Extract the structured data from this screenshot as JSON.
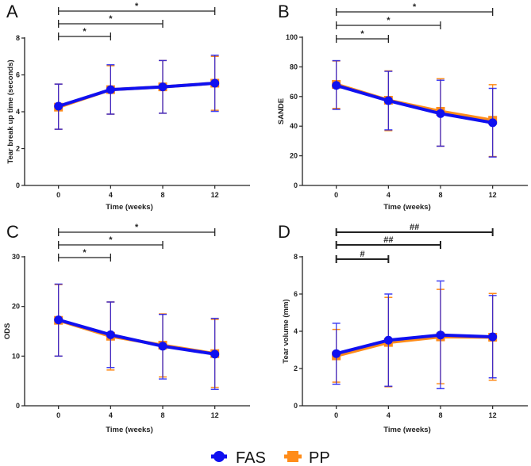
{
  "colors": {
    "FAS": "#1010f0",
    "PP": "#ff8c1a",
    "axis": "#222222"
  },
  "legend": [
    {
      "name": "FAS",
      "label": "FAS",
      "marker": "circle"
    },
    {
      "name": "PP",
      "label": "PP",
      "marker": "square"
    }
  ],
  "chart_data": [
    {
      "panel": "A",
      "type": "line",
      "xlabel": "Time (weeks)",
      "ylabel": "Tear break up time (seconds)",
      "x": [
        0,
        4,
        8,
        12
      ],
      "xticks": [
        "0",
        "4",
        "8",
        "12"
      ],
      "xlim": [
        -2.6,
        14.7
      ],
      "ylim": [
        0,
        8
      ],
      "yticks": [
        "0",
        "2",
        "4",
        "6",
        "8"
      ],
      "series": [
        {
          "name": "PP",
          "values": [
            4.25,
            5.2,
            5.35,
            5.55
          ],
          "err_low": [
            3.05,
            3.87,
            3.92,
            4.08
          ],
          "err_high": [
            5.5,
            6.5,
            6.78,
            7.0
          ]
        },
        {
          "name": "FAS",
          "values": [
            4.3,
            5.2,
            5.35,
            5.55
          ],
          "err_low": [
            3.05,
            3.87,
            3.92,
            4.02
          ],
          "err_high": [
            5.5,
            6.55,
            6.78,
            7.07
          ]
        }
      ],
      "comparisons": [
        {
          "from": 0,
          "to": 12,
          "label": "*"
        },
        {
          "from": 0,
          "to": 8,
          "label": "*"
        },
        {
          "from": 0,
          "to": 4,
          "label": "*"
        }
      ]
    },
    {
      "panel": "B",
      "type": "line",
      "xlabel": "Time (weeks)",
      "ylabel": "SANDE",
      "x": [
        0,
        4,
        8,
        12
      ],
      "xticks": [
        "0",
        "4",
        "8",
        "12"
      ],
      "xlim": [
        -2.6,
        14.7
      ],
      "ylim": [
        0,
        100
      ],
      "yticks": [
        "0",
        "20",
        "40",
        "60",
        "80",
        "100"
      ],
      "series": [
        {
          "name": "PP",
          "values": [
            68.2,
            57.5,
            50,
            44
          ],
          "err_low": [
            52,
            37,
            26.5,
            19.5
          ],
          "err_high": [
            84,
            77.3,
            72,
            68
          ]
        },
        {
          "name": "FAS",
          "values": [
            67.5,
            57.2,
            48.5,
            42.3
          ],
          "err_low": [
            51.3,
            37.5,
            26.5,
            19.2
          ],
          "err_high": [
            84.2,
            77,
            71,
            65.5
          ]
        }
      ],
      "comparisons": [
        {
          "from": 0,
          "to": 12,
          "label": "*"
        },
        {
          "from": 0,
          "to": 8,
          "label": "*"
        },
        {
          "from": 0,
          "to": 4,
          "label": "*"
        }
      ]
    },
    {
      "panel": "C",
      "type": "line",
      "xlabel": "Time (weeks)",
      "ylabel": "ODS",
      "x": [
        0,
        4,
        8,
        12
      ],
      "xticks": [
        "0",
        "4",
        "8",
        "12"
      ],
      "xlim": [
        -2.6,
        14.7
      ],
      "ylim": [
        0,
        30
      ],
      "yticks": [
        "0",
        "10",
        "20",
        "30"
      ],
      "series": [
        {
          "name": "PP",
          "values": [
            17.2,
            14,
            12.2,
            10.5
          ],
          "err_low": [
            10,
            7.2,
            5.8,
            3.7
          ],
          "err_high": [
            24.4,
            20.9,
            18.5,
            17.4
          ]
        },
        {
          "name": "FAS",
          "values": [
            17.3,
            14.3,
            12,
            10.4
          ],
          "err_low": [
            10,
            7.7,
            5.4,
            3.3
          ],
          "err_high": [
            24.5,
            20.9,
            18.4,
            17.6
          ]
        }
      ],
      "comparisons": [
        {
          "from": 0,
          "to": 12,
          "label": "*"
        },
        {
          "from": 0,
          "to": 8,
          "label": "*"
        },
        {
          "from": 0,
          "to": 4,
          "label": "*"
        }
      ]
    },
    {
      "panel": "D",
      "type": "line",
      "xlabel": "Time (weeks)",
      "ylabel": "Tear volume (mm)",
      "x": [
        0,
        4,
        8,
        12
      ],
      "xticks": [
        "0",
        "4",
        "8",
        "12"
      ],
      "xlim": [
        -2.6,
        14.7
      ],
      "ylim": [
        0,
        8
      ],
      "yticks": [
        "0",
        "2",
        "4",
        "6",
        "8"
      ],
      "series": [
        {
          "name": "PP",
          "values": [
            2.68,
            3.4,
            3.7,
            3.68
          ],
          "err_low": [
            1.27,
            1.02,
            1.18,
            1.37
          ],
          "err_high": [
            4.1,
            5.82,
            6.25,
            6.03
          ]
        },
        {
          "name": "FAS",
          "values": [
            2.8,
            3.52,
            3.8,
            3.7
          ],
          "err_low": [
            1.15,
            1.05,
            0.92,
            1.5
          ],
          "err_high": [
            4.43,
            6.0,
            6.7,
            5.92
          ]
        }
      ],
      "comparisons": [
        {
          "from": 0,
          "to": 12,
          "label": "##"
        },
        {
          "from": 0,
          "to": 8,
          "label": "##"
        },
        {
          "from": 0,
          "to": 4,
          "label": "#"
        }
      ]
    }
  ]
}
